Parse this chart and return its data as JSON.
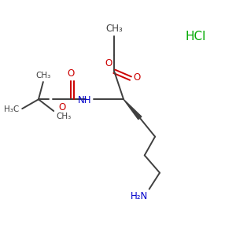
{
  "bg_color": "#ffffff",
  "bond_color": "#3f3f3f",
  "o_color": "#cc0000",
  "n_color": "#0000cc",
  "green_color": "#00aa00",
  "figsize": [
    3.0,
    3.0
  ],
  "dpi": 100,
  "xlim": [
    0,
    10
  ],
  "ylim": [
    0,
    10
  ],
  "lw": 1.4,
  "fs": 8.5,
  "fs_small": 7.5,
  "hcl_text": "HCl",
  "nh2_text": "H₂N",
  "nh_text": "NH",
  "ch3_top": "CH₃",
  "o_text": "O",
  "h3c_text": "H₃C",
  "ch3_text": "CH₃"
}
